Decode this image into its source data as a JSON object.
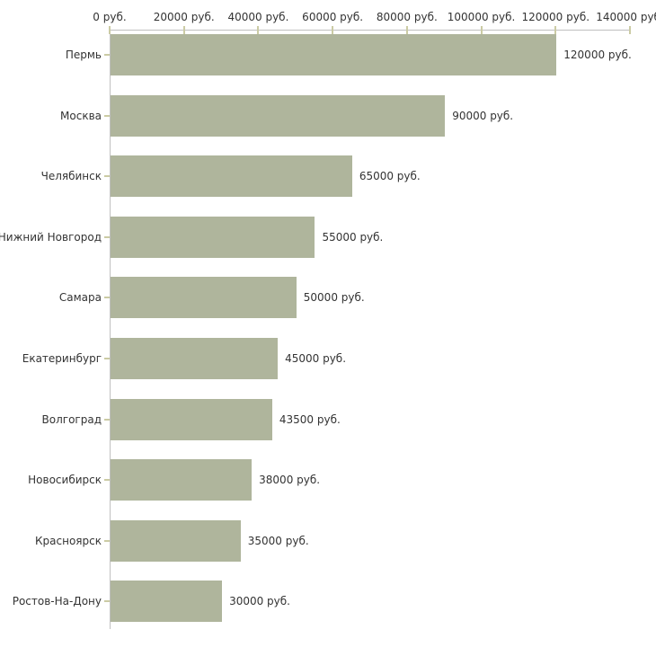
{
  "chart_data": {
    "type": "bar",
    "orientation": "horizontal",
    "title": "",
    "unit": "руб.",
    "categories": [
      "Пермь",
      "Москва",
      "Челябинск",
      "Нижний Новгород",
      "Самара",
      "Екатеринбург",
      "Волгоград",
      "Новосибирск",
      "Красноярск",
      "Ростов-На-Дону"
    ],
    "values": [
      120000,
      90000,
      65000,
      55000,
      50000,
      45000,
      43500,
      38000,
      35000,
      30000
    ],
    "value_labels": [
      "120000 руб.",
      "90000 руб.",
      "65000 руб.",
      "55000 руб.",
      "50000 руб.",
      "45000 руб.",
      "43500 руб.",
      "38000 руб.",
      "35000 руб.",
      "30000 руб."
    ],
    "x_axis": {
      "position": "top",
      "min": 0,
      "max": 140000,
      "ticks": [
        0,
        20000,
        40000,
        60000,
        80000,
        100000,
        120000,
        140000
      ],
      "tick_labels": [
        "0 руб.",
        "20000 руб.",
        "40000 руб.",
        "60000 руб.",
        "80000 руб.",
        "100000 руб.",
        "120000 руб.",
        "140000 руб."
      ]
    },
    "grid": false,
    "legend": false,
    "colors": {
      "bar": "#afb59c",
      "axis_line": "#c0c0c0",
      "tick_mark": "#cbcba4",
      "text": "#333333",
      "background": "#ffffff"
    }
  }
}
